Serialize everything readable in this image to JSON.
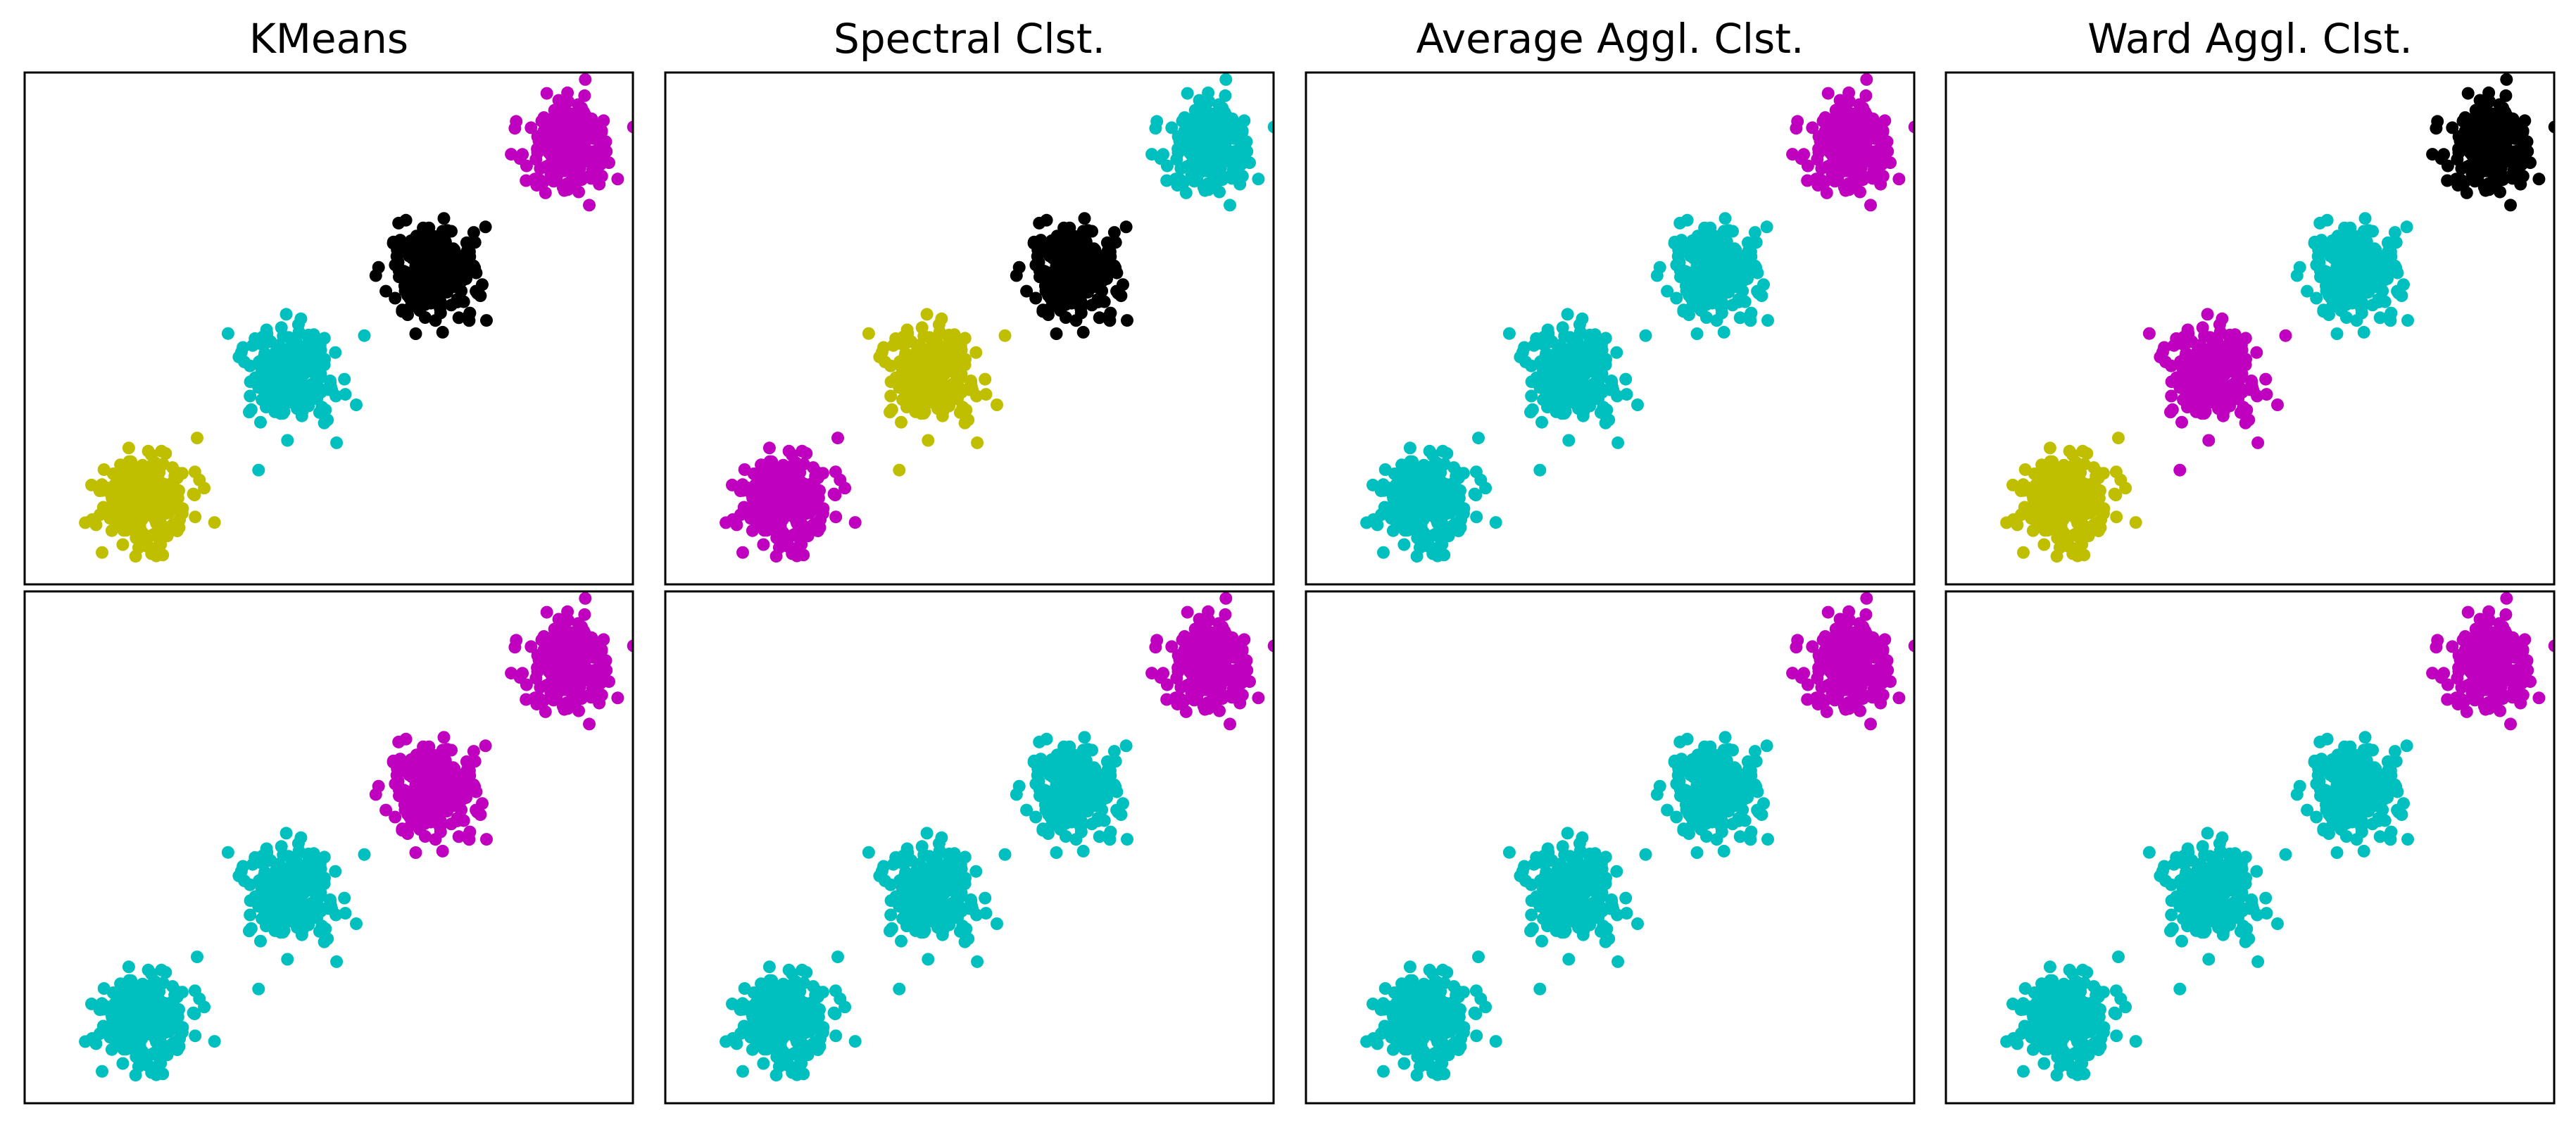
{
  "chart_data": {
    "type": "scatter",
    "grid": false,
    "axes_ticks": false,
    "xlim": [
      -4.6,
      3.6
    ],
    "ylim": [
      -4.6,
      2.3
    ],
    "colors": {
      "cyan": "#00bfbf",
      "magenta": "#bf00bf",
      "olive": "#bfbf00",
      "black": "#000000"
    },
    "blobs": [
      {
        "name": "blob-1",
        "center": [
          -3.0,
          -3.5
        ],
        "spread": 0.3
      },
      {
        "name": "blob-2",
        "center": [
          -1.0,
          -1.8
        ],
        "spread": 0.3
      },
      {
        "name": "blob-3",
        "center": [
          0.9,
          -0.4
        ],
        "spread": 0.3
      },
      {
        "name": "blob-4",
        "center": [
          2.75,
          1.3
        ],
        "spread": 0.3
      }
    ],
    "points_per_blob": 250,
    "panels": [
      {
        "row": 0,
        "col": 0,
        "title": "KMeans",
        "cluster_colors": [
          "olive",
          "cyan",
          "black",
          "magenta"
        ]
      },
      {
        "row": 0,
        "col": 1,
        "title": "Spectral Clst.",
        "cluster_colors": [
          "magenta",
          "olive",
          "black",
          "cyan"
        ]
      },
      {
        "row": 0,
        "col": 2,
        "title": "Average Aggl. Clst.",
        "cluster_colors": [
          "cyan",
          "cyan",
          "cyan",
          "magenta"
        ]
      },
      {
        "row": 0,
        "col": 3,
        "title": "Ward Aggl. Clst.",
        "cluster_colors": [
          "olive",
          "magenta",
          "cyan",
          "black"
        ]
      },
      {
        "row": 1,
        "col": 0,
        "title": "",
        "cluster_colors": [
          "cyan",
          "cyan",
          "magenta",
          "magenta"
        ]
      },
      {
        "row": 1,
        "col": 1,
        "title": "",
        "cluster_colors": [
          "cyan",
          "cyan",
          "cyan",
          "magenta"
        ]
      },
      {
        "row": 1,
        "col": 2,
        "title": "",
        "cluster_colors": [
          "cyan",
          "cyan",
          "cyan",
          "magenta"
        ]
      },
      {
        "row": 1,
        "col": 3,
        "title": "",
        "cluster_colors": [
          "cyan",
          "cyan",
          "cyan",
          "magenta"
        ]
      }
    ]
  }
}
